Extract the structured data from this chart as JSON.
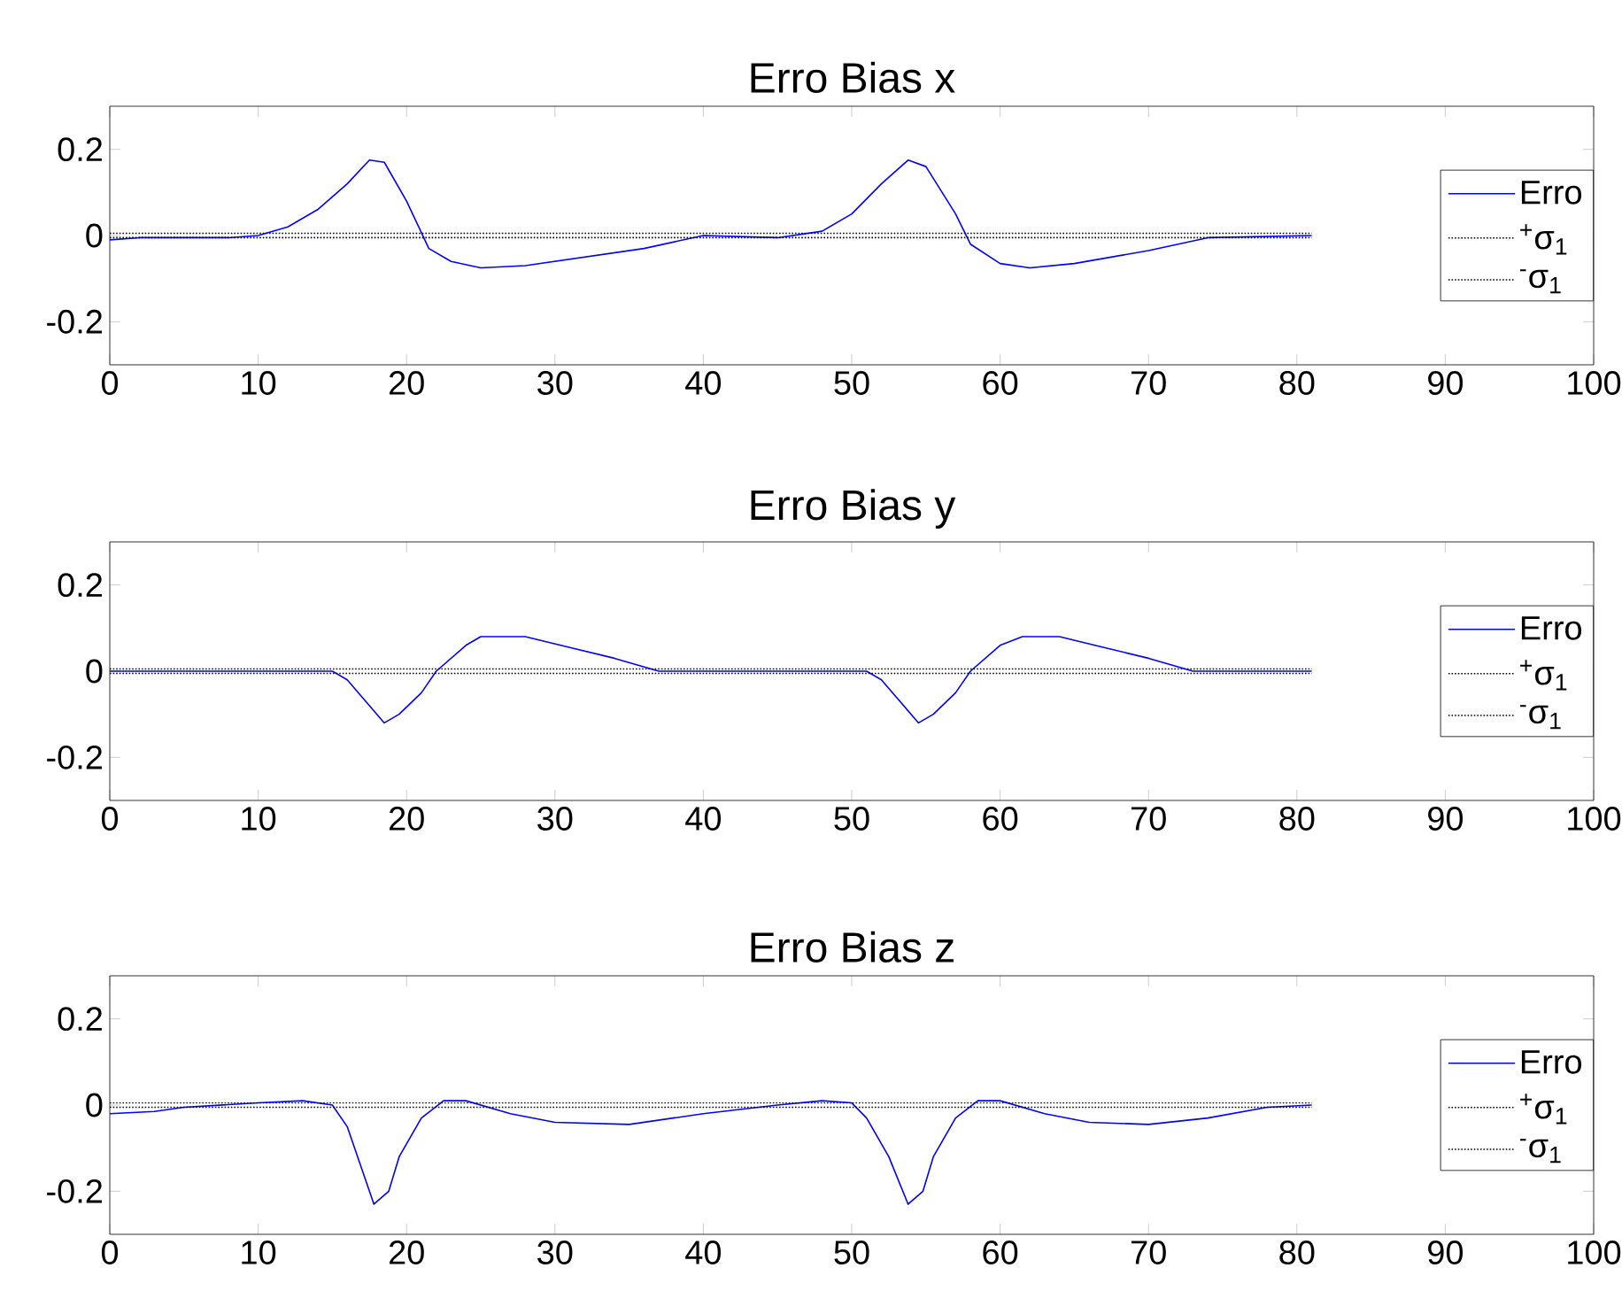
{
  "chart_data": [
    {
      "type": "line",
      "title": "Erro Bias x",
      "xlim": [
        0,
        100
      ],
      "ylim": [
        -0.3,
        0.3
      ],
      "xticks": [
        0,
        10,
        20,
        30,
        40,
        50,
        60,
        70,
        80,
        90,
        100
      ],
      "yticks": [
        -0.2,
        0,
        0.2
      ],
      "legend": "right",
      "series": [
        {
          "name": "Erro",
          "color": "#0000ff",
          "line_style": "solid",
          "x": [
            0,
            2,
            8,
            10,
            12,
            14,
            16,
            17.5,
            18.5,
            20,
            21.5,
            23,
            25,
            28,
            32,
            36,
            40,
            45,
            48,
            50,
            52,
            53.8,
            55,
            57,
            58,
            60,
            62,
            65,
            70,
            74,
            81
          ],
          "values": [
            -0.01,
            -0.005,
            -0.005,
            0,
            0.02,
            0.06,
            0.12,
            0.175,
            0.17,
            0.08,
            -0.03,
            -0.06,
            -0.075,
            -0.07,
            -0.05,
            -0.03,
            0,
            -0.005,
            0.01,
            0.05,
            0.12,
            0.175,
            0.16,
            0.05,
            -0.02,
            -0.065,
            -0.075,
            -0.065,
            -0.035,
            -0.005,
            0
          ]
        },
        {
          "name": "$^{+}$σ$_{1}$",
          "color": "#000000",
          "line_style": "dotted",
          "x": [
            0,
            81
          ],
          "values": [
            0.005,
            0.005
          ]
        },
        {
          "name": "$^{-}$σ$_{1}$",
          "color": "#000000",
          "line_style": "dotted",
          "x": [
            0,
            81
          ],
          "values": [
            -0.005,
            -0.005
          ]
        }
      ]
    },
    {
      "type": "line",
      "title": "Erro Bias y",
      "xlim": [
        0,
        100
      ],
      "ylim": [
        -0.3,
        0.3
      ],
      "xticks": [
        0,
        10,
        20,
        30,
        40,
        50,
        60,
        70,
        80,
        90,
        100
      ],
      "yticks": [
        -0.2,
        0,
        0.2
      ],
      "legend": "right",
      "series": [
        {
          "name": "Erro",
          "color": "#0000ff",
          "line_style": "solid",
          "x": [
            0,
            5,
            15,
            16,
            17,
            18.5,
            19.5,
            21,
            22,
            24,
            25,
            28,
            31,
            34,
            37,
            45,
            51,
            52,
            53,
            54.5,
            55.5,
            57,
            58,
            60,
            61.5,
            64,
            67,
            70,
            73,
            81
          ],
          "values": [
            0,
            0,
            0,
            -0.02,
            -0.06,
            -0.12,
            -0.1,
            -0.05,
            0,
            0.06,
            0.08,
            0.08,
            0.055,
            0.03,
            0,
            0,
            0,
            -0.02,
            -0.06,
            -0.12,
            -0.1,
            -0.05,
            0,
            0.06,
            0.08,
            0.08,
            0.055,
            0.03,
            0,
            0
          ]
        },
        {
          "name": "$^{+}$σ$_{1}$",
          "color": "#000000",
          "line_style": "dotted",
          "x": [
            0,
            81
          ],
          "values": [
            0.005,
            0.005
          ]
        },
        {
          "name": "$^{-}$σ$_{1}$",
          "color": "#000000",
          "line_style": "dotted",
          "x": [
            0,
            81
          ],
          "values": [
            -0.005,
            -0.005
          ]
        }
      ]
    },
    {
      "type": "line",
      "title": "Erro Bias z",
      "xlim": [
        0,
        100
      ],
      "ylim": [
        -0.3,
        0.3
      ],
      "xticks": [
        0,
        10,
        20,
        30,
        40,
        50,
        60,
        70,
        80,
        90,
        100
      ],
      "yticks": [
        -0.2,
        0,
        0.2
      ],
      "legend": "right",
      "series": [
        {
          "name": "Erro",
          "color": "#0000ff",
          "line_style": "solid",
          "x": [
            0,
            3,
            5,
            10,
            13,
            15,
            16,
            17,
            17.8,
            18.8,
            19.5,
            21,
            22.5,
            24,
            27,
            30,
            35,
            40,
            45,
            48,
            50,
            51,
            52.5,
            53.8,
            54.8,
            55.5,
            57,
            58.5,
            60,
            63,
            66,
            70,
            74,
            78,
            81
          ],
          "values": [
            -0.02,
            -0.015,
            -0.005,
            0.005,
            0.01,
            0,
            -0.05,
            -0.15,
            -0.23,
            -0.2,
            -0.12,
            -0.03,
            0.01,
            0.01,
            -0.02,
            -0.04,
            -0.045,
            -0.02,
            0,
            0.01,
            0.005,
            -0.03,
            -0.12,
            -0.23,
            -0.2,
            -0.12,
            -0.03,
            0.01,
            0.01,
            -0.02,
            -0.04,
            -0.045,
            -0.03,
            -0.005,
            0
          ]
        },
        {
          "name": "$^{+}$σ$_{1}$",
          "color": "#000000",
          "line_style": "dotted",
          "x": [
            0,
            81
          ],
          "values": [
            0.005,
            0.005
          ]
        },
        {
          "name": "$^{-}$σ$_{1}$",
          "color": "#000000",
          "line_style": "dotted",
          "x": [
            0,
            81
          ],
          "values": [
            -0.005,
            -0.005
          ]
        }
      ]
    }
  ]
}
